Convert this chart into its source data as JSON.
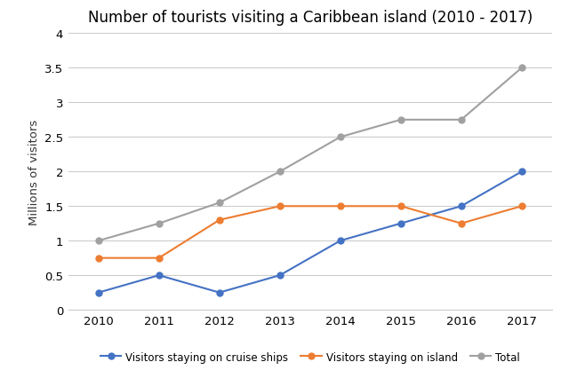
{
  "title": "Number of tourists visiting a Caribbean island (2010 - 2017)",
  "ylabel": "Millions of visitors",
  "years": [
    2010,
    2011,
    2012,
    2013,
    2014,
    2015,
    2016,
    2017
  ],
  "cruise_ships": [
    0.25,
    0.5,
    0.25,
    0.5,
    1.0,
    1.25,
    1.5,
    2.0
  ],
  "on_island": [
    0.75,
    0.75,
    1.3,
    1.5,
    1.5,
    1.5,
    1.25,
    1.5
  ],
  "total": [
    1.0,
    1.25,
    1.55,
    2.0,
    2.5,
    2.75,
    2.75,
    3.5
  ],
  "cruise_color": "#4472c4",
  "island_color": "#ed7d31",
  "total_color": "#a0a0a0",
  "ylim": [
    0,
    4
  ],
  "yticks": [
    0,
    0.5,
    1.0,
    1.5,
    2.0,
    2.5,
    3.0,
    3.5,
    4.0
  ],
  "ytick_labels": [
    "0",
    "0.5",
    "1",
    "1.5",
    "2",
    "2.5",
    "3",
    "3.5",
    "4"
  ],
  "legend_labels": [
    "Visitors staying on cruise ships",
    "Visitors staying on island",
    "Total"
  ],
  "background_color": "#ffffff",
  "grid_color": "#cccccc"
}
